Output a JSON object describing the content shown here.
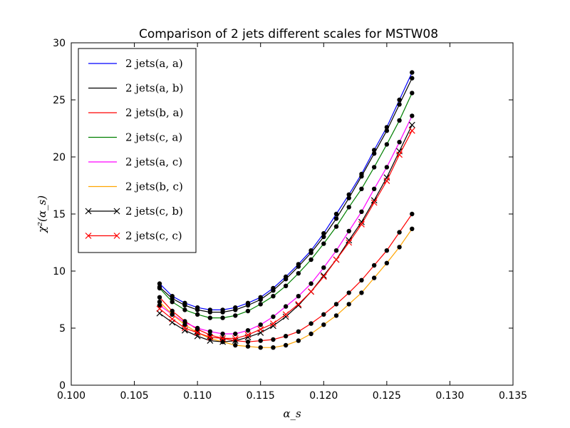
{
  "chart_data": {
    "type": "line",
    "title": "Comparison of 2 jets different scales for MSTW08",
    "xlabel": "α_s",
    "ylabel": "χ²(α_s)",
    "xlim": [
      0.1,
      0.135
    ],
    "ylim": [
      0,
      30
    ],
    "xticks": [
      "0.100",
      "0.105",
      "0.110",
      "0.115",
      "0.120",
      "0.125",
      "0.130",
      "0.135"
    ],
    "yticks": [
      "0",
      "5",
      "10",
      "15",
      "20",
      "25",
      "30"
    ],
    "grid": false,
    "legend_position": "top-left",
    "x": [
      0.107,
      0.108,
      0.109,
      0.11,
      0.111,
      0.112,
      0.113,
      0.114,
      0.115,
      0.116,
      0.117,
      0.118,
      0.119,
      0.12,
      0.121,
      0.122,
      0.123,
      0.124,
      0.125,
      0.126,
      0.127
    ],
    "series": [
      {
        "name": "2 jets(a, a)",
        "color": "#0000ff",
        "marker": "dot",
        "values": [
          8.9,
          7.8,
          7.2,
          6.8,
          6.6,
          6.6,
          6.8,
          7.2,
          7.7,
          8.5,
          9.5,
          10.6,
          11.8,
          13.3,
          15.0,
          16.7,
          18.5,
          20.6,
          22.6,
          25.0,
          27.4
        ]
      },
      {
        "name": "2 jets(a, b)",
        "color": "#000000",
        "marker": "dot",
        "values": [
          8.6,
          7.6,
          7.0,
          6.6,
          6.4,
          6.4,
          6.6,
          7.0,
          7.5,
          8.3,
          9.3,
          10.4,
          11.6,
          13.0,
          14.6,
          16.4,
          18.3,
          20.3,
          22.3,
          24.6,
          26.9
        ]
      },
      {
        "name": "2 jets(b, a)",
        "color": "#ff0000",
        "marker": "dot",
        "values": [
          7.7,
          6.5,
          5.6,
          4.9,
          4.4,
          4.1,
          3.9,
          3.8,
          3.9,
          4.0,
          4.3,
          4.7,
          5.4,
          6.2,
          7.1,
          8.1,
          9.2,
          10.5,
          11.8,
          13.4,
          15.0
        ]
      },
      {
        "name": "2 jets(c, a)",
        "color": "#008000",
        "marker": "dot",
        "values": [
          8.5,
          7.3,
          6.6,
          6.2,
          5.9,
          5.9,
          6.1,
          6.5,
          7.1,
          7.8,
          8.7,
          9.8,
          11.0,
          12.4,
          13.9,
          15.6,
          17.2,
          19.1,
          21.1,
          23.2,
          25.6
        ]
      },
      {
        "name": "2 jets(a, c)",
        "color": "#ff00ff",
        "marker": "dot",
        "values": [
          7.0,
          6.2,
          5.5,
          5.0,
          4.7,
          4.5,
          4.5,
          4.8,
          5.3,
          6.0,
          6.9,
          7.8,
          8.9,
          10.3,
          11.8,
          13.5,
          15.2,
          17.2,
          19.1,
          21.3,
          23.6
        ]
      },
      {
        "name": "2 jets(b, c)",
        "color": "#ffa500",
        "marker": "dot",
        "values": [
          7.3,
          6.2,
          5.3,
          4.6,
          4.1,
          3.8,
          3.5,
          3.4,
          3.3,
          3.3,
          3.5,
          3.9,
          4.5,
          5.3,
          6.1,
          7.1,
          8.1,
          9.4,
          10.7,
          12.1,
          13.7
        ]
      },
      {
        "name": "2 jets(c, b)",
        "color": "#000000",
        "marker": "x",
        "values": [
          6.3,
          5.5,
          4.8,
          4.3,
          3.9,
          3.8,
          3.9,
          4.2,
          4.6,
          5.2,
          6.0,
          7.0,
          8.2,
          9.6,
          11.0,
          12.7,
          14.3,
          16.2,
          18.2,
          20.5,
          22.8
        ]
      },
      {
        "name": "2 jets(c, c)",
        "color": "#ff0000",
        "marker": "x",
        "values": [
          6.7,
          5.8,
          5.0,
          4.6,
          4.2,
          4.1,
          4.1,
          4.4,
          4.9,
          5.4,
          6.2,
          7.1,
          8.2,
          9.5,
          11.0,
          12.5,
          14.1,
          16.0,
          17.9,
          20.2,
          22.3
        ]
      }
    ]
  }
}
